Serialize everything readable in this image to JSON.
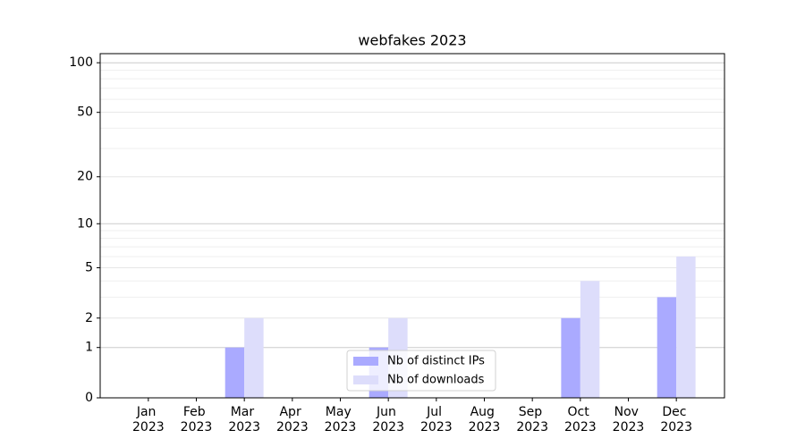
{
  "chart_data": {
    "type": "bar",
    "title": "webfakes 2023",
    "categories": [
      "Jan 2023",
      "Feb 2023",
      "Mar 2023",
      "Apr 2023",
      "May 2023",
      "Jun 2023",
      "Jul 2023",
      "Aug 2023",
      "Sep 2023",
      "Oct 2023",
      "Nov 2023",
      "Dec 2023"
    ],
    "series": [
      {
        "name": "Nb of distinct IPs",
        "color": "#aaaaff",
        "values": [
          0,
          0,
          1,
          0,
          0,
          1,
          0,
          0,
          0,
          2,
          0,
          3
        ]
      },
      {
        "name": "Nb of downloads",
        "color": "#ddddfb",
        "values": [
          0,
          0,
          2,
          0,
          0,
          2,
          0,
          0,
          0,
          4,
          0,
          6
        ]
      }
    ],
    "yscale": "log1p",
    "ylim": [
      0,
      113.5
    ],
    "yticks": [
      0,
      1,
      2,
      5,
      10,
      20,
      50,
      100
    ],
    "minor_yticks": [
      3,
      4,
      6,
      7,
      8,
      9,
      30,
      40,
      60,
      70,
      80,
      90
    ],
    "grid": true,
    "legend_position": "bottom"
  }
}
